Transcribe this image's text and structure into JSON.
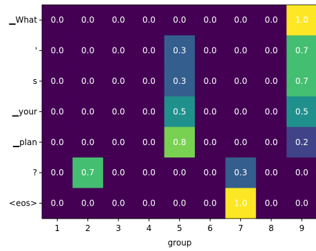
{
  "chart_data": {
    "type": "heatmap",
    "xlabel": "group",
    "ylabel": "",
    "x_labels": [
      "1",
      "2",
      "3",
      "4",
      "5",
      "6",
      "7",
      "8",
      "9"
    ],
    "y_labels": [
      "▁What",
      "'",
      "s",
      "▁your",
      "▁plan",
      "?",
      "<eos>"
    ],
    "values": [
      [
        0.0,
        0.0,
        0.0,
        0.0,
        0.0,
        0.0,
        0.0,
        0.0,
        1.0
      ],
      [
        0.0,
        0.0,
        0.0,
        0.0,
        0.3,
        0.0,
        0.0,
        0.0,
        0.7
      ],
      [
        0.0,
        0.0,
        0.0,
        0.0,
        0.3,
        0.0,
        0.0,
        0.0,
        0.7
      ],
      [
        0.0,
        0.0,
        0.0,
        0.0,
        0.5,
        0.0,
        0.0,
        0.0,
        0.5
      ],
      [
        0.0,
        0.0,
        0.0,
        0.0,
        0.8,
        0.0,
        0.0,
        0.0,
        0.2
      ],
      [
        0.0,
        0.7,
        0.0,
        0.0,
        0.0,
        0.0,
        0.3,
        0.0,
        0.0
      ],
      [
        0.0,
        0.0,
        0.0,
        0.0,
        0.0,
        0.0,
        1.0,
        0.0,
        0.0
      ]
    ],
    "value_format": "0.1f",
    "colormap": "viridis",
    "vmin": 0.0,
    "vmax": 1.0,
    "colors": {
      "annotation_text": "#ffffff",
      "axis": "#000000"
    }
  }
}
